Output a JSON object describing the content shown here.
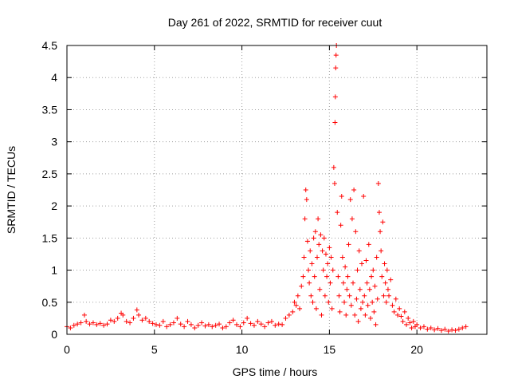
{
  "chart_data": {
    "type": "scatter",
    "title": "Day 261 of 2022, SRMTID for receiver cuut",
    "xlabel": "GPS time / hours",
    "ylabel": "SRMTID / TECUs",
    "xlim": [
      0,
      24
    ],
    "ylim": [
      0,
      4.5
    ],
    "xticks": [
      0,
      5,
      10,
      15,
      20
    ],
    "xtick_labels": [
      "0",
      "5",
      "10",
      "15",
      "20"
    ],
    "yticks": [
      0,
      0.5,
      1,
      1.5,
      2,
      2.5,
      3,
      3.5,
      4,
      4.5
    ],
    "ytick_labels": [
      "0",
      "0.5",
      "1",
      "1.5",
      "2",
      "2.5",
      "3",
      "3.5",
      "4",
      "4.5"
    ],
    "grid": true,
    "marker": "+",
    "color": "#ff0000",
    "series": [
      {
        "name": "SRMTID",
        "points": [
          [
            0.0,
            0.12
          ],
          [
            0.2,
            0.1
          ],
          [
            0.4,
            0.14
          ],
          [
            0.6,
            0.16
          ],
          [
            0.8,
            0.18
          ],
          [
            1.0,
            0.3
          ],
          [
            1.1,
            0.2
          ],
          [
            1.3,
            0.16
          ],
          [
            1.5,
            0.18
          ],
          [
            1.7,
            0.15
          ],
          [
            1.9,
            0.17
          ],
          [
            2.1,
            0.14
          ],
          [
            2.3,
            0.16
          ],
          [
            2.5,
            0.22
          ],
          [
            2.7,
            0.2
          ],
          [
            2.9,
            0.25
          ],
          [
            3.1,
            0.33
          ],
          [
            3.2,
            0.3
          ],
          [
            3.4,
            0.2
          ],
          [
            3.6,
            0.18
          ],
          [
            3.8,
            0.25
          ],
          [
            4.0,
            0.38
          ],
          [
            4.1,
            0.3
          ],
          [
            4.3,
            0.22
          ],
          [
            4.5,
            0.25
          ],
          [
            4.7,
            0.2
          ],
          [
            4.9,
            0.17
          ],
          [
            5.1,
            0.15
          ],
          [
            5.3,
            0.14
          ],
          [
            5.5,
            0.2
          ],
          [
            5.7,
            0.12
          ],
          [
            5.9,
            0.15
          ],
          [
            6.1,
            0.18
          ],
          [
            6.3,
            0.25
          ],
          [
            6.5,
            0.16
          ],
          [
            6.7,
            0.12
          ],
          [
            6.9,
            0.2
          ],
          [
            7.1,
            0.15
          ],
          [
            7.3,
            0.1
          ],
          [
            7.5,
            0.14
          ],
          [
            7.7,
            0.18
          ],
          [
            7.9,
            0.13
          ],
          [
            8.1,
            0.15
          ],
          [
            8.3,
            0.12
          ],
          [
            8.5,
            0.14
          ],
          [
            8.7,
            0.16
          ],
          [
            8.9,
            0.1
          ],
          [
            9.1,
            0.12
          ],
          [
            9.3,
            0.18
          ],
          [
            9.5,
            0.22
          ],
          [
            9.7,
            0.15
          ],
          [
            9.9,
            0.12
          ],
          [
            10.1,
            0.18
          ],
          [
            10.3,
            0.25
          ],
          [
            10.5,
            0.17
          ],
          [
            10.7,
            0.14
          ],
          [
            10.9,
            0.2
          ],
          [
            11.1,
            0.16
          ],
          [
            11.3,
            0.12
          ],
          [
            11.5,
            0.18
          ],
          [
            11.7,
            0.2
          ],
          [
            11.9,
            0.14
          ],
          [
            12.1,
            0.16
          ],
          [
            12.3,
            0.15
          ],
          [
            12.5,
            0.25
          ],
          [
            12.7,
            0.3
          ],
          [
            12.9,
            0.35
          ],
          [
            13.0,
            0.5
          ],
          [
            13.1,
            0.45
          ],
          [
            13.2,
            0.6
          ],
          [
            13.3,
            0.4
          ],
          [
            13.4,
            0.75
          ],
          [
            13.5,
            0.9
          ],
          [
            13.55,
            1.2
          ],
          [
            13.6,
            1.8
          ],
          [
            13.65,
            2.25
          ],
          [
            13.7,
            2.1
          ],
          [
            13.75,
            1.45
          ],
          [
            13.8,
            1.0
          ],
          [
            13.85,
            0.8
          ],
          [
            13.9,
            1.3
          ],
          [
            13.95,
            0.6
          ],
          [
            14.0,
            1.1
          ],
          [
            14.05,
            0.5
          ],
          [
            14.1,
            1.5
          ],
          [
            14.15,
            0.9
          ],
          [
            14.2,
            1.6
          ],
          [
            14.25,
            0.4
          ],
          [
            14.3,
            1.2
          ],
          [
            14.35,
            1.8
          ],
          [
            14.4,
            1.4
          ],
          [
            14.45,
            0.7
          ],
          [
            14.5,
            1.55
          ],
          [
            14.55,
            0.3
          ],
          [
            14.6,
            1.3
          ],
          [
            14.65,
            1.0
          ],
          [
            14.7,
            1.5
          ],
          [
            14.75,
            0.6
          ],
          [
            14.8,
            1.25
          ],
          [
            14.85,
            0.9
          ],
          [
            14.9,
            1.1
          ],
          [
            14.95,
            0.5
          ],
          [
            15.0,
            1.35
          ],
          [
            15.05,
            0.8
          ],
          [
            15.1,
            1.2
          ],
          [
            15.15,
            0.4
          ],
          [
            15.2,
            1.0
          ],
          [
            15.25,
            2.6
          ],
          [
            15.3,
            2.35
          ],
          [
            15.32,
            3.3
          ],
          [
            15.34,
            3.7
          ],
          [
            15.36,
            4.15
          ],
          [
            15.38,
            4.35
          ],
          [
            15.4,
            4.5
          ],
          [
            15.45,
            1.9
          ],
          [
            15.5,
            0.9
          ],
          [
            15.55,
            0.6
          ],
          [
            15.6,
            0.35
          ],
          [
            15.65,
            1.7
          ],
          [
            15.7,
            2.15
          ],
          [
            15.75,
            1.2
          ],
          [
            15.8,
            0.8
          ],
          [
            15.85,
            0.5
          ],
          [
            15.9,
            1.05
          ],
          [
            15.95,
            0.3
          ],
          [
            16.0,
            0.7
          ],
          [
            16.05,
            0.9
          ],
          [
            16.1,
            1.4
          ],
          [
            16.15,
            0.6
          ],
          [
            16.2,
            2.1
          ],
          [
            16.25,
            0.45
          ],
          [
            16.3,
            1.8
          ],
          [
            16.35,
            0.8
          ],
          [
            16.4,
            2.25
          ],
          [
            16.45,
            0.3
          ],
          [
            16.5,
            1.6
          ],
          [
            16.55,
            0.55
          ],
          [
            16.6,
            1.0
          ],
          [
            16.65,
            0.2
          ],
          [
            16.7,
            1.3
          ],
          [
            16.75,
            0.7
          ],
          [
            16.8,
            0.4
          ],
          [
            16.85,
            1.1
          ],
          [
            16.9,
            0.5
          ],
          [
            16.95,
            2.15
          ],
          [
            17.0,
            0.6
          ],
          [
            17.05,
            0.3
          ],
          [
            17.1,
            1.15
          ],
          [
            17.15,
            0.8
          ],
          [
            17.2,
            0.45
          ],
          [
            17.25,
            1.4
          ],
          [
            17.3,
            0.7
          ],
          [
            17.35,
            0.25
          ],
          [
            17.4,
            0.9
          ],
          [
            17.45,
            0.5
          ],
          [
            17.5,
            1.0
          ],
          [
            17.55,
            0.35
          ],
          [
            17.6,
            0.75
          ],
          [
            17.65,
            0.15
          ],
          [
            17.7,
            1.2
          ],
          [
            17.75,
            0.55
          ],
          [
            17.8,
            2.35
          ],
          [
            17.85,
            1.9
          ],
          [
            17.9,
            1.6
          ],
          [
            17.95,
            1.3
          ],
          [
            18.0,
            0.9
          ],
          [
            18.05,
            1.75
          ],
          [
            18.1,
            0.6
          ],
          [
            18.15,
            1.1
          ],
          [
            18.2,
            0.8
          ],
          [
            18.25,
            0.5
          ],
          [
            18.3,
            1.0
          ],
          [
            18.35,
            0.7
          ],
          [
            18.4,
            0.6
          ],
          [
            18.5,
            0.85
          ],
          [
            18.6,
            0.45
          ],
          [
            18.7,
            0.35
          ],
          [
            18.8,
            0.55
          ],
          [
            18.9,
            0.3
          ],
          [
            19.0,
            0.4
          ],
          [
            19.1,
            0.28
          ],
          [
            19.2,
            0.2
          ],
          [
            19.3,
            0.35
          ],
          [
            19.4,
            0.15
          ],
          [
            19.5,
            0.25
          ],
          [
            19.6,
            0.18
          ],
          [
            19.7,
            0.1
          ],
          [
            19.8,
            0.2
          ],
          [
            19.9,
            0.12
          ],
          [
            20.0,
            0.15
          ],
          [
            20.2,
            0.1
          ],
          [
            20.4,
            0.12
          ],
          [
            20.6,
            0.08
          ],
          [
            20.8,
            0.1
          ],
          [
            21.0,
            0.07
          ],
          [
            21.2,
            0.09
          ],
          [
            21.4,
            0.06
          ],
          [
            21.6,
            0.08
          ],
          [
            21.8,
            0.05
          ],
          [
            22.0,
            0.07
          ],
          [
            22.2,
            0.06
          ],
          [
            22.4,
            0.08
          ],
          [
            22.6,
            0.1
          ],
          [
            22.8,
            0.12
          ]
        ]
      }
    ]
  }
}
